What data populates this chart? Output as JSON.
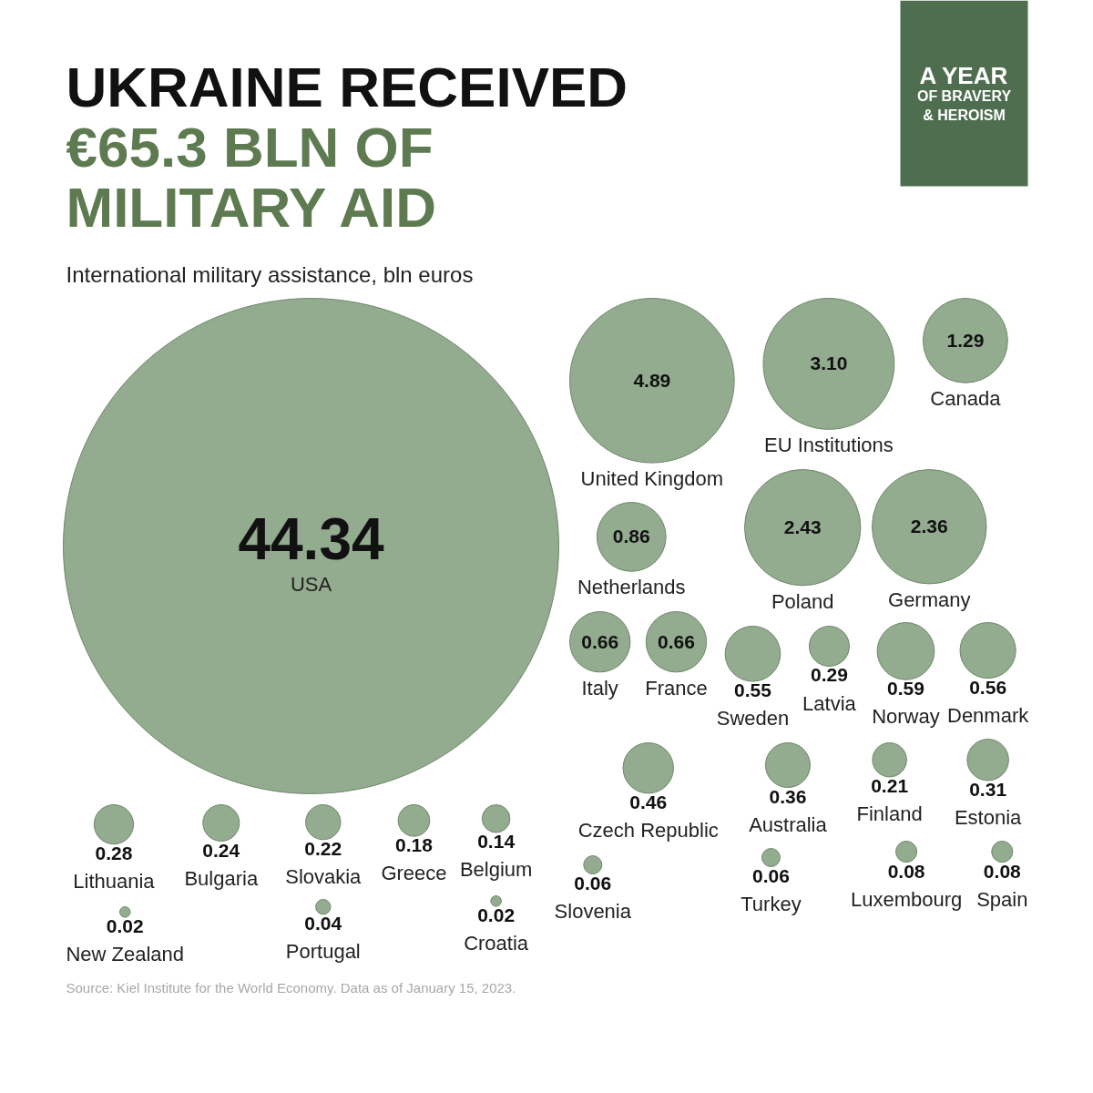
{
  "chart_data": {
    "type": "other",
    "title": "UKRAINE RECEIVED\n€65.3 BLN OF\nMILITARY AID",
    "subtitle": "International military assistance, bln euros",
    "annotations": [
      "A YEAR\nOF BRAVERY\n& HEROISM",
      "Source: Kiel Institute for the World Economy. Data as of January 15, 2023."
    ],
    "categories": [
      "USA",
      "United Kingdom",
      "EU Institutions",
      "Poland",
      "Germany",
      "Canada",
      "Netherlands",
      "Italy",
      "France",
      "Norway",
      "Denmark",
      "Sweden",
      "Czech Republic",
      "Australia",
      "Estonia",
      "Latvia",
      "Lithuania",
      "Bulgaria",
      "Slovakia",
      "Finland",
      "Greece",
      "Belgium",
      "Luxembourg",
      "Spain",
      "Turkey",
      "Slovenia",
      "Portugal",
      "Croatia",
      "New Zealand"
    ],
    "values": [
      44.34,
      4.89,
      3.1,
      2.43,
      2.36,
      1.29,
      0.86,
      0.66,
      0.66,
      0.59,
      0.56,
      0.55,
      0.46,
      0.36,
      0.31,
      0.29,
      0.28,
      0.24,
      0.22,
      0.21,
      0.18,
      0.14,
      0.08,
      0.08,
      0.06,
      0.06,
      0.04,
      0.02,
      0.02
    ],
    "value_labels": [
      "44.34",
      "4.89",
      "3.10",
      "2.43",
      "2.36",
      "1.29",
      "0.86",
      "0.66",
      "0.66",
      "0.59",
      "0.56",
      "0.55",
      "0.46",
      "0.36",
      "0.31",
      "0.29",
      "0.28",
      "0.24",
      "0.22",
      "0.21",
      "0.18",
      "0.14",
      "0.08",
      "0.08",
      "0.06",
      "0.06",
      "0.04",
      "0.02",
      "0.02"
    ],
    "color": "#93ab8f"
  }
}
